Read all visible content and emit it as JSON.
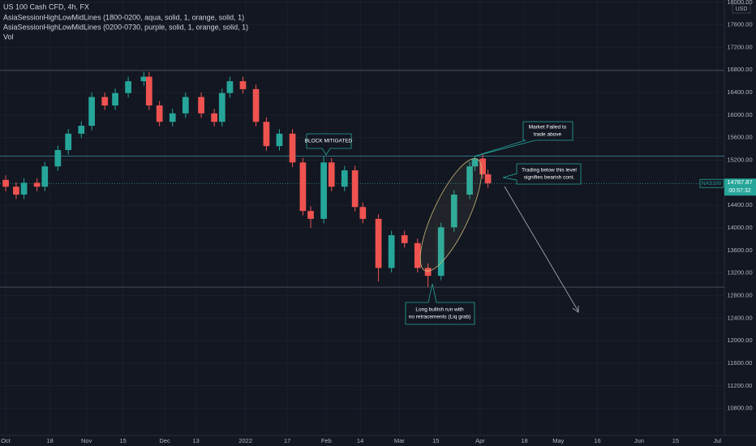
{
  "chart_data": {
    "type": "candlestick",
    "title": "US 100 Cash CFD, 4h, FX",
    "indicators": [
      "AsiaSessionHighLowMidLines (1800-0200, aqua, solid, 1, orange, solid, 1)",
      "AsiaSessionHighLowMidLines (0200-0730, purple, solid, 1, orange, solid, 1)",
      "Vol"
    ],
    "currency": "USD",
    "symbol": "NAS100",
    "last_price": 14787.87,
    "countdown": "00:57:32",
    "up_color": "#26a69a",
    "down_color": "#ef5350",
    "x": [
      0,
      4,
      7,
      12,
      15,
      20,
      24,
      29,
      33,
      38,
      42,
      47,
      53,
      55,
      59,
      64,
      69,
      75,
      80,
      83,
      86,
      91,
      96,
      100,
      105,
      110,
      114,
      117,
      122,
      125,
      130,
      134,
      137,
      143,
      148,
      153,
      158,
      162,
      167,
      172,
      178,
      180,
      183,
      185
    ],
    "open": [
      14850,
      14730,
      14590,
      14800,
      14730,
      15090,
      15380,
      15670,
      15810,
      16320,
      16170,
      16390,
      16600,
      16680,
      16170,
      15880,
      16030,
      16320,
      16030,
      15880,
      16390,
      16600,
      16460,
      15880,
      15450,
      15670,
      15160,
      14300,
      14160,
      15160,
      14730,
      15020,
      14370,
      14160,
      13290,
      13870,
      13730,
      13290,
      13150,
      14010,
      14590,
      15090,
      15230,
      14950
    ],
    "high": [
      14930,
      14810,
      14880,
      14880,
      15170,
      15460,
      15750,
      15890,
      16400,
      16400,
      16470,
      16680,
      16770,
      16760,
      16250,
      16110,
      16400,
      16400,
      16110,
      16470,
      16680,
      16680,
      16540,
      15960,
      15750,
      15750,
      15240,
      14380,
      15270,
      15240,
      15100,
      15100,
      14450,
      14240,
      13950,
      13950,
      13810,
      13370,
      14090,
      14670,
      15170,
      15270,
      15310,
      15030
    ],
    "low": [
      14650,
      14510,
      14510,
      14650,
      14650,
      15010,
      15300,
      15590,
      15730,
      16090,
      16090,
      16310,
      16520,
      16090,
      15800,
      15800,
      15950,
      15950,
      15800,
      15800,
      16310,
      16380,
      15800,
      15370,
      15370,
      15080,
      14220,
      14000,
      14080,
      14650,
      14650,
      14290,
      14080,
      13050,
      13210,
      13650,
      13210,
      12950,
      13070,
      13930,
      14510,
      15010,
      14870,
      14710
    ],
    "close": [
      14730,
      14590,
      14800,
      14730,
      15090,
      15380,
      15670,
      15810,
      16320,
      16170,
      16390,
      16600,
      16680,
      16170,
      15880,
      16030,
      16320,
      16030,
      15880,
      16390,
      16600,
      16460,
      15880,
      15450,
      15670,
      15160,
      14300,
      14160,
      15160,
      14730,
      15020,
      14370,
      14160,
      13290,
      13870,
      13730,
      13290,
      13150,
      14010,
      14590,
      15090,
      15230,
      14950,
      14790
    ],
    "levels": [
      {
        "value": 16790,
        "color": "#787b86"
      },
      {
        "value": 15270,
        "color": "#4dd0e1"
      },
      {
        "value": 12950,
        "color": "#787b86"
      }
    ],
    "ylim": [
      10320,
      18040
    ],
    "yticks": [
      {
        "value": 18000,
        "label": "18000.00"
      },
      {
        "value": 17600,
        "label": "17600.00"
      },
      {
        "value": 17200,
        "label": "17200.00"
      },
      {
        "value": 16800,
        "label": "16800.00"
      },
      {
        "value": 16400,
        "label": "16400.00"
      },
      {
        "value": 16000,
        "label": "16000.00"
      },
      {
        "value": 15600,
        "label": "15600.00"
      },
      {
        "value": 15200,
        "label": "15200.00"
      },
      {
        "value": 14400,
        "label": "14400.00"
      },
      {
        "value": 14000,
        "label": "14000.00"
      },
      {
        "value": 13600,
        "label": "13600.00"
      },
      {
        "value": 13200,
        "label": "13200.00"
      },
      {
        "value": 12800,
        "label": "12800.00"
      },
      {
        "value": 12400,
        "label": "12400.00"
      },
      {
        "value": 12000,
        "label": "12000.00"
      },
      {
        "value": 11600,
        "label": "11600.00"
      },
      {
        "value": 11200,
        "label": "11200.00"
      },
      {
        "value": 10800,
        "label": "10800.00"
      }
    ],
    "xlim": [
      -2.2,
      275.7
    ],
    "xticks": [
      {
        "value": 0,
        "label": "Oct"
      },
      {
        "value": 17,
        "label": "18"
      },
      {
        "value": 31,
        "label": "Nov"
      },
      {
        "value": 45,
        "label": "15"
      },
      {
        "value": 61,
        "label": "Dec"
      },
      {
        "value": 73,
        "label": "13"
      },
      {
        "value": 92,
        "label": "2022"
      },
      {
        "value": 108,
        "label": "17"
      },
      {
        "value": 123,
        "label": "Feb"
      },
      {
        "value": 136,
        "label": "14"
      },
      {
        "value": 151,
        "label": "Mar"
      },
      {
        "value": 165,
        "label": "15"
      },
      {
        "value": 182,
        "label": "Apr"
      },
      {
        "value": 199,
        "label": "18"
      },
      {
        "value": 212,
        "label": "May"
      },
      {
        "value": 227,
        "label": "16"
      },
      {
        "value": 243,
        "label": "Jun"
      },
      {
        "value": 257,
        "label": "15"
      },
      {
        "value": 273,
        "label": "Jul"
      }
    ],
    "annotations": [
      "BLOCK MITIGATED",
      "Market Failed to",
      "trade above",
      "Trading below this level",
      "signifies bearish cont.",
      "Long bullish run with",
      "no retracements (Liq grab)"
    ]
  }
}
